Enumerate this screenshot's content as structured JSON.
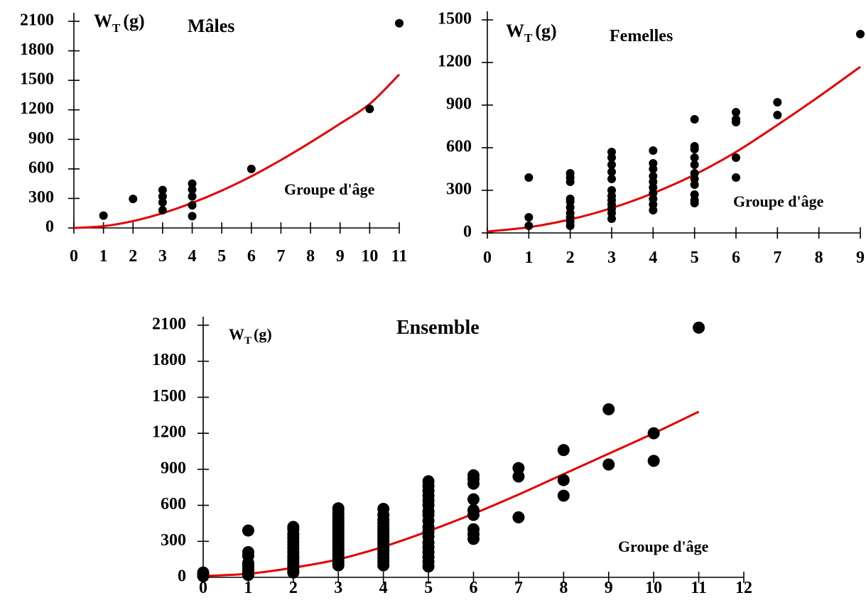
{
  "chart_data": [
    {
      "id": "males",
      "type": "scatter",
      "title": "Mâles",
      "ylabel_main": "W",
      "ylabel_sub": "T",
      "ylabel_unit": "(g)",
      "xlabel": "Groupe d'âge",
      "xlim": [
        0,
        11
      ],
      "ylim": [
        0,
        2100
      ],
      "xticks": [
        0,
        1,
        2,
        3,
        4,
        5,
        6,
        7,
        8,
        9,
        10,
        11
      ],
      "yticks": [
        0,
        300,
        600,
        900,
        1200,
        1500,
        1800,
        2100
      ],
      "points": [
        [
          1,
          125
        ],
        [
          2,
          295
        ],
        [
          3,
          180
        ],
        [
          3,
          260
        ],
        [
          3,
          320
        ],
        [
          3,
          385
        ],
        [
          4,
          120
        ],
        [
          4,
          230
        ],
        [
          4,
          320
        ],
        [
          4,
          390
        ],
        [
          4,
          450
        ],
        [
          6,
          600
        ],
        [
          10,
          1210
        ],
        [
          11,
          2080
        ]
      ],
      "fit": {
        "color": "#e30000",
        "x_range": [
          0,
          11
        ],
        "curve": [
          [
            0,
            0
          ],
          [
            1,
            18
          ],
          [
            2,
            70
          ],
          [
            3,
            150
          ],
          [
            4,
            255
          ],
          [
            5,
            380
          ],
          [
            6,
            525
          ],
          [
            7,
            690
          ],
          [
            8,
            870
          ],
          [
            9,
            1060
          ],
          [
            10,
            1260
          ],
          [
            11,
            1560
          ]
        ]
      },
      "grid": false,
      "legend": "none"
    },
    {
      "id": "females",
      "type": "scatter",
      "title": "Femelles",
      "ylabel_main": "W",
      "ylabel_sub": "T",
      "ylabel_unit": "(g)",
      "xlabel": "Groupe d'âge",
      "xlim": [
        0,
        9
      ],
      "ylim": [
        0,
        1500
      ],
      "xticks": [
        0,
        1,
        2,
        3,
        4,
        5,
        6,
        7,
        8,
        9
      ],
      "yticks": [
        0,
        300,
        600,
        900,
        1200,
        1500
      ],
      "points": [
        [
          1,
          50
        ],
        [
          1,
          110
        ],
        [
          1,
          390
        ],
        [
          2,
          50
        ],
        [
          2,
          80
        ],
        [
          2,
          110
        ],
        [
          2,
          140
        ],
        [
          2,
          180
        ],
        [
          2,
          220
        ],
        [
          2,
          240
        ],
        [
          2,
          360
        ],
        [
          2,
          390
        ],
        [
          2,
          420
        ],
        [
          3,
          100
        ],
        [
          3,
          140
        ],
        [
          3,
          170
        ],
        [
          3,
          200
        ],
        [
          3,
          230
        ],
        [
          3,
          260
        ],
        [
          3,
          300
        ],
        [
          3,
          380
        ],
        [
          3,
          430
        ],
        [
          3,
          480
        ],
        [
          3,
          530
        ],
        [
          3,
          570
        ],
        [
          4,
          160
        ],
        [
          4,
          200
        ],
        [
          4,
          240
        ],
        [
          4,
          280
        ],
        [
          4,
          320
        ],
        [
          4,
          360
        ],
        [
          4,
          400
        ],
        [
          4,
          450
        ],
        [
          4,
          490
        ],
        [
          4,
          580
        ],
        [
          5,
          210
        ],
        [
          5,
          230
        ],
        [
          5,
          270
        ],
        [
          5,
          340
        ],
        [
          5,
          380
        ],
        [
          5,
          420
        ],
        [
          5,
          480
        ],
        [
          5,
          530
        ],
        [
          5,
          590
        ],
        [
          5,
          610
        ],
        [
          5,
          800
        ],
        [
          6,
          390
        ],
        [
          6,
          530
        ],
        [
          6,
          780
        ],
        [
          6,
          800
        ],
        [
          6,
          850
        ],
        [
          7,
          830
        ],
        [
          7,
          920
        ],
        [
          9,
          1400
        ]
      ],
      "fit": {
        "color": "#e30000",
        "x_range": [
          0,
          9
        ],
        "curve": [
          [
            0,
            10
          ],
          [
            1,
            40
          ],
          [
            2,
            95
          ],
          [
            3,
            175
          ],
          [
            4,
            280
          ],
          [
            5,
            410
          ],
          [
            6,
            570
          ],
          [
            7,
            760
          ],
          [
            8,
            960
          ],
          [
            9,
            1170
          ]
        ]
      },
      "grid": false,
      "legend": "none"
    },
    {
      "id": "all",
      "type": "scatter",
      "title": "Ensemble",
      "ylabel_main": "W",
      "ylabel_sub": "T",
      "ylabel_unit": "(g)",
      "xlabel": "Groupe d'âge",
      "xlim": [
        0,
        12
      ],
      "ylim": [
        0,
        2100
      ],
      "xticks": [
        0,
        1,
        2,
        3,
        4,
        5,
        6,
        7,
        8,
        9,
        10,
        11,
        12
      ],
      "yticks": [
        0,
        300,
        600,
        900,
        1200,
        1500,
        1800,
        2100
      ],
      "points": [
        [
          0,
          10
        ],
        [
          0,
          25
        ],
        [
          0,
          40
        ],
        [
          1,
          20
        ],
        [
          1,
          40
        ],
        [
          1,
          60
        ],
        [
          1,
          80
        ],
        [
          1,
          100
        ],
        [
          1,
          120
        ],
        [
          1,
          180
        ],
        [
          1,
          210
        ],
        [
          1,
          390
        ],
        [
          2,
          40
        ],
        [
          2,
          60
        ],
        [
          2,
          80
        ],
        [
          2,
          100
        ],
        [
          2,
          120
        ],
        [
          2,
          140
        ],
        [
          2,
          160
        ],
        [
          2,
          180
        ],
        [
          2,
          210
        ],
        [
          2,
          240
        ],
        [
          2,
          270
        ],
        [
          2,
          300
        ],
        [
          2,
          330
        ],
        [
          2,
          360
        ],
        [
          2,
          400
        ],
        [
          2,
          420
        ],
        [
          3,
          100
        ],
        [
          3,
          120
        ],
        [
          3,
          140
        ],
        [
          3,
          160
        ],
        [
          3,
          180
        ],
        [
          3,
          200
        ],
        [
          3,
          220
        ],
        [
          3,
          240
        ],
        [
          3,
          260
        ],
        [
          3,
          280
        ],
        [
          3,
          300
        ],
        [
          3,
          320
        ],
        [
          3,
          340
        ],
        [
          3,
          360
        ],
        [
          3,
          380
        ],
        [
          3,
          400
        ],
        [
          3,
          420
        ],
        [
          3,
          440
        ],
        [
          3,
          460
        ],
        [
          3,
          480
        ],
        [
          3,
          500
        ],
        [
          3,
          530
        ],
        [
          3,
          560
        ],
        [
          3,
          575
        ],
        [
          4,
          100
        ],
        [
          4,
          130
        ],
        [
          4,
          160
        ],
        [
          4,
          190
        ],
        [
          4,
          220
        ],
        [
          4,
          250
        ],
        [
          4,
          280
        ],
        [
          4,
          300
        ],
        [
          4,
          320
        ],
        [
          4,
          340
        ],
        [
          4,
          360
        ],
        [
          4,
          380
        ],
        [
          4,
          400
        ],
        [
          4,
          420
        ],
        [
          4,
          450
        ],
        [
          4,
          480
        ],
        [
          4,
          520
        ],
        [
          4,
          570
        ],
        [
          5,
          90
        ],
        [
          5,
          130
        ],
        [
          5,
          170
        ],
        [
          5,
          210
        ],
        [
          5,
          250
        ],
        [
          5,
          290
        ],
        [
          5,
          340
        ],
        [
          5,
          380
        ],
        [
          5,
          420
        ],
        [
          5,
          470
        ],
        [
          5,
          520
        ],
        [
          5,
          550
        ],
        [
          5,
          600
        ],
        [
          5,
          640
        ],
        [
          5,
          680
        ],
        [
          5,
          720
        ],
        [
          5,
          760
        ],
        [
          5,
          800
        ],
        [
          6,
          320
        ],
        [
          6,
          360
        ],
        [
          6,
          400
        ],
        [
          6,
          520
        ],
        [
          6,
          560
        ],
        [
          6,
          650
        ],
        [
          6,
          780
        ],
        [
          6,
          820
        ],
        [
          6,
          850
        ],
        [
          7,
          500
        ],
        [
          7,
          840
        ],
        [
          7,
          910
        ],
        [
          8,
          680
        ],
        [
          8,
          810
        ],
        [
          8,
          1060
        ],
        [
          9,
          940
        ],
        [
          9,
          1400
        ],
        [
          10,
          970
        ],
        [
          10,
          1200
        ],
        [
          11,
          2080
        ]
      ],
      "fit": {
        "color": "#e30000",
        "x_range": [
          0,
          11
        ],
        "curve": [
          [
            0,
            10
          ],
          [
            1,
            30
          ],
          [
            2,
            80
          ],
          [
            3,
            150
          ],
          [
            4,
            255
          ],
          [
            5,
            385
          ],
          [
            6,
            530
          ],
          [
            7,
            690
          ],
          [
            8,
            860
          ],
          [
            9,
            1030
          ],
          [
            10,
            1200
          ],
          [
            11,
            1380
          ]
        ]
      },
      "grid": false,
      "legend": "none"
    }
  ]
}
